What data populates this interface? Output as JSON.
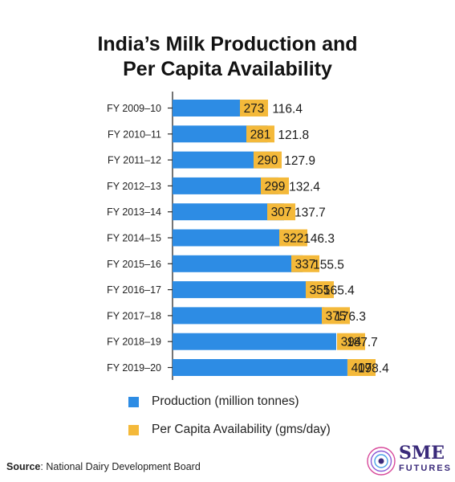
{
  "title_line1": "India’s Milk Production and",
  "title_line2": "Per Capita Availability",
  "colors": {
    "production": "#2d8ce4",
    "per_capita": "#f4b93a",
    "axis": "#2a2a2a"
  },
  "legend": [
    {
      "label": "Production (million tonnes)",
      "color": "#2d8ce4"
    },
    {
      "label": "Per Capita Availability (gms/day)",
      "color": "#f4b93a"
    }
  ],
  "source_label": "Source",
  "source_text": ": National Dairy Development Board",
  "logo": {
    "main": "SME",
    "sub": "FUTURES"
  },
  "chart_data": {
    "type": "bar",
    "orientation": "horizontal",
    "categories": [
      "FY 2009–10",
      "FY 2010–11",
      "FY 2011–12",
      "FY 2012–13",
      "FY 2013–14",
      "FY 2014–15",
      "FY 2015–16",
      "FY 2016–17",
      "FY 2017–18",
      "FY 2018–19",
      "FY 2019–20"
    ],
    "series": [
      {
        "name": "Production (million tonnes)",
        "values": [
          116.4,
          121.8,
          127.9,
          132.4,
          137.7,
          146.3,
          155.5,
          165.4,
          176.3,
          187.7,
          198.4
        ]
      },
      {
        "name": "Per Capita Availability (gms/day)",
        "values": [
          273,
          281,
          290,
          299,
          307,
          322,
          337,
          355,
          375,
          394,
          407
        ]
      }
    ],
    "title": "India’s Milk Production and Per Capita Availability",
    "xlabel": "",
    "ylabel": "",
    "legend_position": "bottom",
    "grid": false
  }
}
